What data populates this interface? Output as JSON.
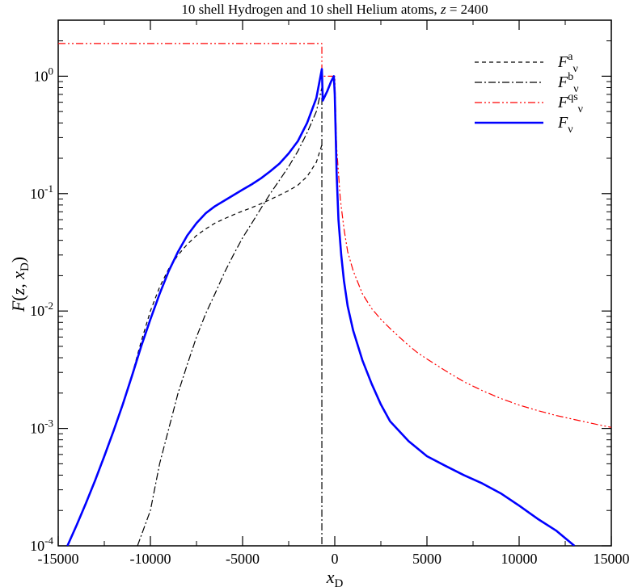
{
  "chart_data": {
    "type": "line",
    "title": {
      "main": "10 shell Hydrogen and 10 shell Helium atoms, ",
      "z_symbol": "z",
      "z_value": " = 2400"
    },
    "xlabel": {
      "base": "x",
      "sub": "D"
    },
    "ylabel": {
      "prefix": "F",
      "open": "(",
      "z": "z",
      "comma": ", ",
      "x": "x",
      "sub": "D",
      "close": ")"
    },
    "xlim": [
      -15000,
      15000
    ],
    "ylim": [
      0.0001,
      3
    ],
    "yscale": "log",
    "x_ticks": [
      {
        "value": -15000,
        "label": "-15000"
      },
      {
        "value": -10000,
        "label": "-10000"
      },
      {
        "value": -5000,
        "label": "-5000"
      },
      {
        "value": 0,
        "label": "0"
      },
      {
        "value": 5000,
        "label": "5000"
      },
      {
        "value": 10000,
        "label": "10000"
      },
      {
        "value": 15000,
        "label": "15000"
      }
    ],
    "y_ticks": [
      {
        "value": 0.0001,
        "base": "10",
        "exp": "-4"
      },
      {
        "value": 0.001,
        "base": "10",
        "exp": "-3"
      },
      {
        "value": 0.01,
        "base": "10",
        "exp": "-2"
      },
      {
        "value": 0.1,
        "base": "10",
        "exp": "-1"
      },
      {
        "value": 1,
        "base": "10",
        "exp": "0"
      }
    ],
    "grid": false,
    "legend_position": "top-right",
    "series": [
      {
        "name": "F^a_ν",
        "label_base": "F",
        "label_sup": "a",
        "label_sub": "ν",
        "color": "#000000",
        "style": "dashed",
        "points": [
          [
            -11100,
            0.0025
          ],
          [
            -10500,
            0.0055
          ],
          [
            -10000,
            0.01
          ],
          [
            -9500,
            0.016
          ],
          [
            -9000,
            0.023
          ],
          [
            -8500,
            0.03
          ],
          [
            -8000,
            0.037
          ],
          [
            -7500,
            0.044
          ],
          [
            -7000,
            0.05
          ],
          [
            -6500,
            0.056
          ],
          [
            -6000,
            0.061
          ],
          [
            -5500,
            0.066
          ],
          [
            -5000,
            0.071
          ],
          [
            -4500,
            0.076
          ],
          [
            -4000,
            0.082
          ],
          [
            -3500,
            0.089
          ],
          [
            -3000,
            0.097
          ],
          [
            -2500,
            0.106
          ],
          [
            -2000,
            0.118
          ],
          [
            -1500,
            0.14
          ],
          [
            -1000,
            0.185
          ],
          [
            -700,
            0.26
          ]
        ]
      },
      {
        "name": "F^b_ν",
        "label_base": "F",
        "label_sup": "b",
        "label_sub": "ν",
        "color": "#000000",
        "style": "dashdot",
        "points": [
          [
            -10700,
            0.0001
          ],
          [
            -10000,
            0.0002
          ],
          [
            -9500,
            0.0005
          ],
          [
            -9000,
            0.001
          ],
          [
            -8500,
            0.002
          ],
          [
            -8000,
            0.0035
          ],
          [
            -7500,
            0.006
          ],
          [
            -7000,
            0.0095
          ],
          [
            -6500,
            0.014
          ],
          [
            -6000,
            0.021
          ],
          [
            -5500,
            0.03
          ],
          [
            -5000,
            0.042
          ],
          [
            -4500,
            0.056
          ],
          [
            -4000,
            0.075
          ],
          [
            -3500,
            0.1
          ],
          [
            -3000,
            0.13
          ],
          [
            -2500,
            0.17
          ],
          [
            -2000,
            0.23
          ],
          [
            -1500,
            0.33
          ],
          [
            -1000,
            0.5
          ],
          [
            -700,
            0.8
          ],
          [
            -700,
            0.0001
          ]
        ]
      },
      {
        "name": "F^qs_ν",
        "label_base": "F",
        "label_sup": "qs",
        "label_sub": "ν",
        "color": "#ff0000",
        "style": "dashdotdot",
        "points": [
          [
            -15000,
            1.9
          ],
          [
            -700,
            1.9
          ],
          [
            -700,
            1.0
          ],
          [
            0,
            1.0
          ],
          [
            100,
            0.25
          ],
          [
            300,
            0.09
          ],
          [
            500,
            0.05
          ],
          [
            700,
            0.032
          ],
          [
            1000,
            0.022
          ],
          [
            1500,
            0.014
          ],
          [
            2000,
            0.0105
          ],
          [
            2500,
            0.0085
          ],
          [
            3000,
            0.0071
          ],
          [
            3500,
            0.006
          ],
          [
            4000,
            0.0051
          ],
          [
            4500,
            0.0044
          ],
          [
            5000,
            0.0039
          ],
          [
            6000,
            0.0031
          ],
          [
            7000,
            0.0025
          ],
          [
            8000,
            0.0021
          ],
          [
            9000,
            0.0018
          ],
          [
            10000,
            0.00158
          ],
          [
            11000,
            0.00142
          ],
          [
            12000,
            0.00129
          ],
          [
            13000,
            0.00119
          ],
          [
            14000,
            0.0011
          ],
          [
            15000,
            0.00102
          ]
        ]
      },
      {
        "name": "F_ν",
        "label_base": "F",
        "label_sup": "",
        "label_sub": "ν",
        "color": "#0000ff",
        "style": "solid",
        "points": [
          [
            -14500,
            0.0001
          ],
          [
            -14000,
            0.00015
          ],
          [
            -13500,
            0.00023
          ],
          [
            -13000,
            0.00036
          ],
          [
            -12500,
            0.00058
          ],
          [
            -12000,
            0.00095
          ],
          [
            -11500,
            0.0016
          ],
          [
            -11000,
            0.0028
          ],
          [
            -10500,
            0.005
          ],
          [
            -10000,
            0.0085
          ],
          [
            -9500,
            0.014
          ],
          [
            -9000,
            0.022
          ],
          [
            -8500,
            0.032
          ],
          [
            -8000,
            0.044
          ],
          [
            -7500,
            0.056
          ],
          [
            -7000,
            0.068
          ],
          [
            -6500,
            0.078
          ],
          [
            -6000,
            0.087
          ],
          [
            -5500,
            0.097
          ],
          [
            -5000,
            0.108
          ],
          [
            -4500,
            0.12
          ],
          [
            -4000,
            0.135
          ],
          [
            -3500,
            0.155
          ],
          [
            -3000,
            0.18
          ],
          [
            -2500,
            0.22
          ],
          [
            -2000,
            0.28
          ],
          [
            -1500,
            0.4
          ],
          [
            -1000,
            0.65
          ],
          [
            -700,
            1.15
          ],
          [
            -650,
            0.62
          ],
          [
            -400,
            0.75
          ],
          [
            -200,
            0.9
          ],
          [
            -50,
            1.0
          ],
          [
            0,
            0.7
          ],
          [
            100,
            0.15
          ],
          [
            200,
            0.06
          ],
          [
            350,
            0.03
          ],
          [
            500,
            0.018
          ],
          [
            700,
            0.011
          ],
          [
            1000,
            0.0068
          ],
          [
            1500,
            0.0038
          ],
          [
            2000,
            0.0024
          ],
          [
            2500,
            0.0016
          ],
          [
            3000,
            0.00115
          ],
          [
            4000,
            0.00078
          ],
          [
            5000,
            0.00058
          ],
          [
            6000,
            0.00048
          ],
          [
            7000,
            0.0004
          ],
          [
            8000,
            0.00034
          ],
          [
            9000,
            0.00028
          ],
          [
            10000,
            0.00022
          ],
          [
            11000,
            0.00017
          ],
          [
            12000,
            0.000135
          ],
          [
            13000,
            0.0001
          ]
        ]
      }
    ]
  }
}
